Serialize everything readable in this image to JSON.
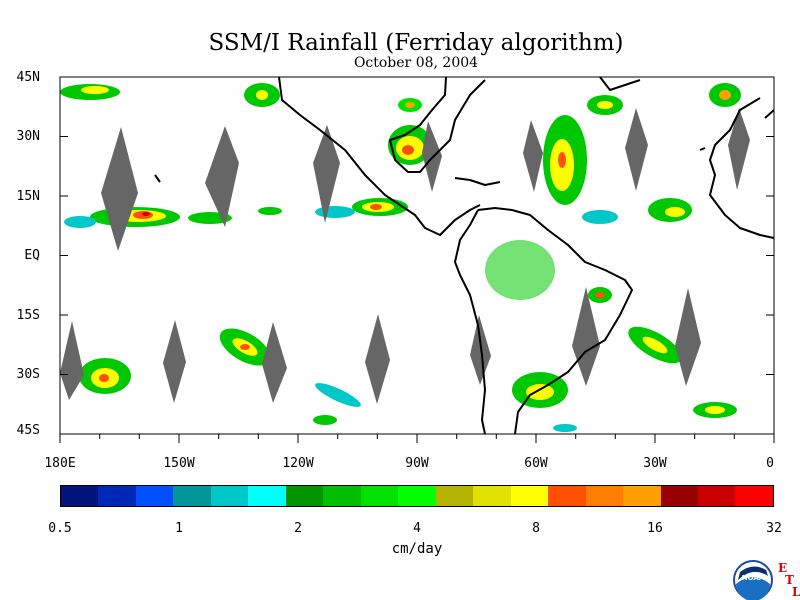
{
  "title": "SSM/I Rainfall (Ferriday algorithm)",
  "subtitle": "October 08, 2004",
  "lat_labels": [
    "45N",
    "30N",
    "15N",
    "EQ",
    "15S",
    "30S",
    "45S"
  ],
  "lat_values": [
    45,
    30,
    15,
    0,
    -15,
    -30,
    -45
  ],
  "lon_labels": [
    "180E",
    "150W",
    "120W",
    "90W",
    "60W",
    "30W",
    "0"
  ],
  "lon_values": [
    -180,
    -150,
    -120,
    -90,
    -60,
    -30,
    0
  ],
  "colorbar": {
    "labels": [
      "0.5",
      "1",
      "2",
      "4",
      "8",
      "16",
      "32"
    ],
    "units": "cm/day",
    "colors": [
      "#001479",
      "#0028b8",
      "#0050ff",
      "#00969a",
      "#00c8c8",
      "#00ffff",
      "#009600",
      "#00be00",
      "#00e100",
      "#00ff00",
      "#b4b400",
      "#e1e100",
      "#ffff00",
      "#ff5000",
      "#ff7d00",
      "#ffa000",
      "#960000",
      "#c80000",
      "#ff0000"
    ]
  },
  "colors": {
    "land_outline": "#000000",
    "no_data_swath": "#666666"
  },
  "logo": {
    "text": "NOAA",
    "side_letters": [
      "E",
      "T",
      "L"
    ]
  }
}
